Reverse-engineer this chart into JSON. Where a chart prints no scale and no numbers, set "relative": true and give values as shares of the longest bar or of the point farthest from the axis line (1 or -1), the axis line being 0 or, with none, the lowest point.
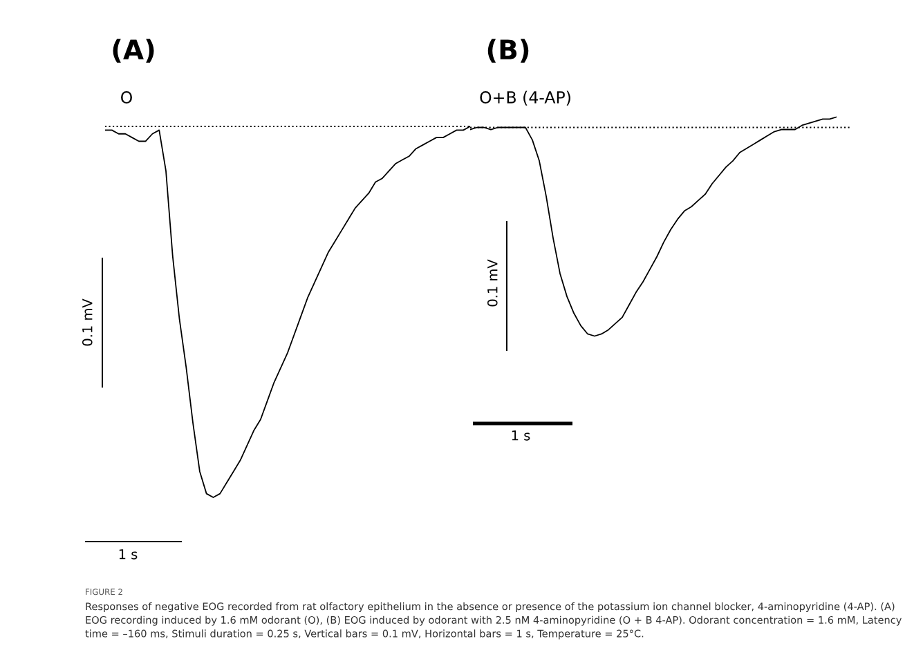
{
  "chart_data": [
    {
      "type": "line",
      "title": "(A)",
      "subtitle": "O",
      "relative": true,
      "categories": [
        null,
        null,
        null,
        null,
        null,
        null,
        null,
        null,
        null,
        null,
        null,
        null,
        null,
        null,
        null,
        null,
        null,
        null,
        null,
        null,
        null,
        null,
        null,
        null,
        null,
        null,
        null,
        null,
        null,
        null,
        null,
        null,
        null,
        null,
        null,
        null,
        null,
        null,
        null,
        null,
        null,
        null,
        null,
        null,
        null,
        null,
        null,
        null,
        null,
        null,
        null,
        null,
        null,
        null,
        null
      ],
      "series": [
        {
          "color": "#000000",
          "values": [
            -0.01,
            -0.01,
            -0.02,
            -0.02,
            -0.03,
            -0.04,
            -0.04,
            -0.02,
            -0.01,
            -0.12,
            -0.35,
            -0.52,
            -0.65,
            -0.8,
            -0.93,
            -0.99,
            -1,
            -0.99,
            -0.96,
            -0.93,
            -0.9,
            -0.86,
            -0.82,
            -0.79,
            -0.74,
            -0.69,
            -0.65,
            -0.61,
            -0.56,
            -0.51,
            -0.46,
            -0.42,
            -0.38,
            -0.34,
            -0.31,
            -0.28,
            -0.25,
            -0.22,
            -0.2,
            -0.18,
            -0.15,
            -0.14,
            -0.12,
            -0.1,
            -0.09,
            -0.08,
            -0.06,
            -0.05,
            -0.04,
            -0.03,
            -0.03,
            -0.02,
            -0.01,
            -0.01,
            0
          ]
        }
      ],
      "ref_lines": [
        {
          "axis": "y",
          "value": 0,
          "line_style": "dotted",
          "color": "#000000"
        }
      ],
      "annotations": [
        "0.1 mV",
        "1 s",
        "FIGURE 2",
        "Responses of negative EOG recorded from rat olfactory epithelium in the absence or presence of the potassium ion channel blocker, 4-aminopyridine (4-AP). (A) EOG recording induced by 1.6 mM odorant (O), (B) EOG induced by odorant with 2.5 nM 4-aminopyridine (O + B 4-AP). Odorant concentration = 1.6 mM, Latency time = –160 ms, Stimuli duration = 0.25 s, Vertical bars = 0.1 mV, Horizontal bars = 1 s, Temperature = 25°C."
      ]
    },
    {
      "type": "line",
      "title": "(B)",
      "subtitle": "O+B (4-AP)",
      "relative": true,
      "categories": [
        null,
        null,
        null,
        null,
        null,
        null,
        null,
        null,
        null,
        null,
        null,
        null,
        null,
        null,
        null,
        null,
        null,
        null,
        null,
        null,
        null,
        null,
        null,
        null,
        null,
        null,
        null,
        null,
        null,
        null,
        null,
        null,
        null,
        null,
        null,
        null,
        null,
        null,
        null,
        null,
        null,
        null,
        null,
        null,
        null,
        null,
        null,
        null,
        null,
        null,
        null,
        null,
        null,
        null
      ],
      "series": [
        {
          "color": "#000000",
          "values": [
            -0.01,
            0,
            0,
            -0.01,
            0,
            0,
            0,
            0,
            0,
            -0.06,
            -0.16,
            -0.33,
            -0.53,
            -0.7,
            -0.81,
            -0.89,
            -0.95,
            -0.99,
            -1,
            -0.99,
            -0.97,
            -0.94,
            -0.91,
            -0.85,
            -0.79,
            -0.74,
            -0.68,
            -0.62,
            -0.55,
            -0.49,
            -0.44,
            -0.4,
            -0.38,
            -0.35,
            -0.32,
            -0.27,
            -0.23,
            -0.19,
            -0.16,
            -0.12,
            -0.1,
            -0.08,
            -0.06,
            -0.04,
            -0.02,
            -0.01,
            -0.01,
            -0.01,
            0.01,
            0.02,
            0.03,
            0.04,
            0.04,
            0.05
          ]
        }
      ],
      "ref_lines": [
        {
          "axis": "y",
          "value": 0,
          "line_style": "dotted",
          "color": "#000000"
        }
      ],
      "annotations": [
        "0.1 mV",
        "1 s"
      ]
    }
  ]
}
